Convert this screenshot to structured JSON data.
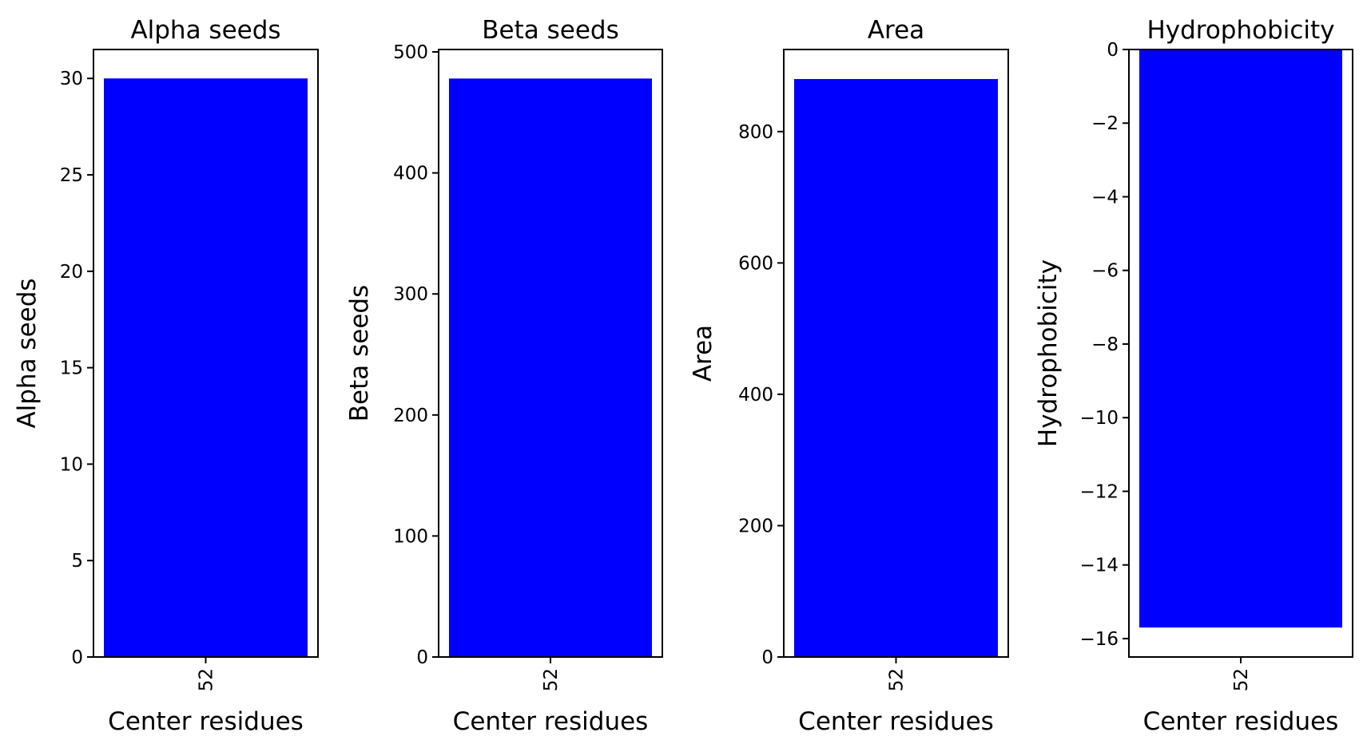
{
  "chart_data": [
    {
      "type": "bar",
      "title": "Alpha seeds",
      "xlabel": "Center residues",
      "ylabel": "Alpha seeds",
      "categories": [
        "52"
      ],
      "values": [
        30
      ],
      "ylim": [
        0,
        31.5
      ],
      "yticks": [
        0,
        5,
        10,
        15,
        20,
        25,
        30
      ],
      "ytick_labels": [
        "0",
        "5",
        "10",
        "15",
        "20",
        "25",
        "30"
      ],
      "bar_color": "#0000ff",
      "grid": false
    },
    {
      "type": "bar",
      "title": "Beta seeds",
      "xlabel": "Center residues",
      "ylabel": "Beta seeds",
      "categories": [
        "52"
      ],
      "values": [
        478
      ],
      "ylim": [
        0,
        502
      ],
      "yticks": [
        0,
        100,
        200,
        300,
        400,
        500
      ],
      "ytick_labels": [
        "0",
        "100",
        "200",
        "300",
        "400",
        "500"
      ],
      "bar_color": "#0000ff",
      "grid": false
    },
    {
      "type": "bar",
      "title": "Area",
      "xlabel": "Center residues",
      "ylabel": "Area",
      "categories": [
        "52"
      ],
      "values": [
        880
      ],
      "ylim": [
        0,
        925
      ],
      "yticks": [
        0,
        200,
        400,
        600,
        800
      ],
      "ytick_labels": [
        "0",
        "200",
        "400",
        "600",
        "800"
      ],
      "bar_color": "#0000ff",
      "grid": false
    },
    {
      "type": "bar",
      "title": "Hydrophobicity",
      "xlabel": "Center residues",
      "ylabel": "Hydrophobicity",
      "categories": [
        "52"
      ],
      "values": [
        -15.7
      ],
      "ylim": [
        -16.5,
        0
      ],
      "yticks": [
        0,
        -2,
        -4,
        -6,
        -8,
        -10,
        -12,
        -14,
        -16
      ],
      "ytick_labels": [
        "0",
        "−2",
        "−4",
        "−6",
        "−8",
        "−10",
        "−12",
        "−14",
        "−16"
      ],
      "bar_color": "#0000ff",
      "grid": false
    }
  ]
}
